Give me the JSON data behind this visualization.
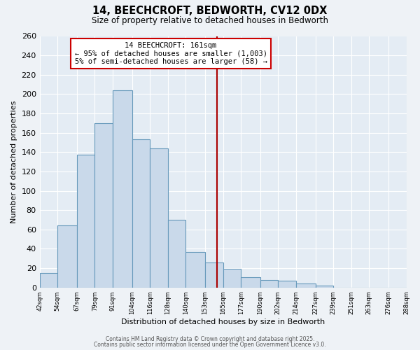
{
  "title": "14, BEECHCROFT, BEDWORTH, CV12 0DX",
  "subtitle": "Size of property relative to detached houses in Bedworth",
  "xlabel": "Distribution of detached houses by size in Bedworth",
  "ylabel": "Number of detached properties",
  "bar_edges": [
    42,
    54,
    67,
    79,
    91,
    104,
    116,
    128,
    140,
    153,
    165,
    177,
    190,
    202,
    214,
    227,
    239,
    251,
    263,
    276,
    288
  ],
  "bar_heights": [
    15,
    64,
    137,
    170,
    204,
    153,
    144,
    70,
    37,
    26,
    19,
    11,
    8,
    7,
    4,
    2,
    0,
    0,
    0,
    0
  ],
  "bar_color": "#c9d9ea",
  "bar_edge_color": "#6699bb",
  "vline_x": 161,
  "vline_color": "#aa0000",
  "annotation_title": "14 BEECHCROFT: 161sqm",
  "annotation_line1": "← 95% of detached houses are smaller (1,003)",
  "annotation_line2": "5% of semi-detached houses are larger (58) →",
  "annotation_box_facecolor": "#ffffff",
  "annotation_box_edgecolor": "#cc0000",
  "ylim": [
    0,
    260
  ],
  "yticks": [
    0,
    20,
    40,
    60,
    80,
    100,
    120,
    140,
    160,
    180,
    200,
    220,
    240,
    260
  ],
  "tick_labels": [
    "42sqm",
    "54sqm",
    "67sqm",
    "79sqm",
    "91sqm",
    "104sqm",
    "116sqm",
    "128sqm",
    "140sqm",
    "153sqm",
    "165sqm",
    "177sqm",
    "190sqm",
    "202sqm",
    "214sqm",
    "227sqm",
    "239sqm",
    "251sqm",
    "263sqm",
    "276sqm",
    "288sqm"
  ],
  "footer1": "Contains HM Land Registry data © Crown copyright and database right 2025.",
  "footer2": "Contains public sector information licensed under the Open Government Licence v3.0.",
  "bg_color": "#eef2f6",
  "plot_bg_color": "#e4ecf4",
  "grid_color": "#ffffff"
}
